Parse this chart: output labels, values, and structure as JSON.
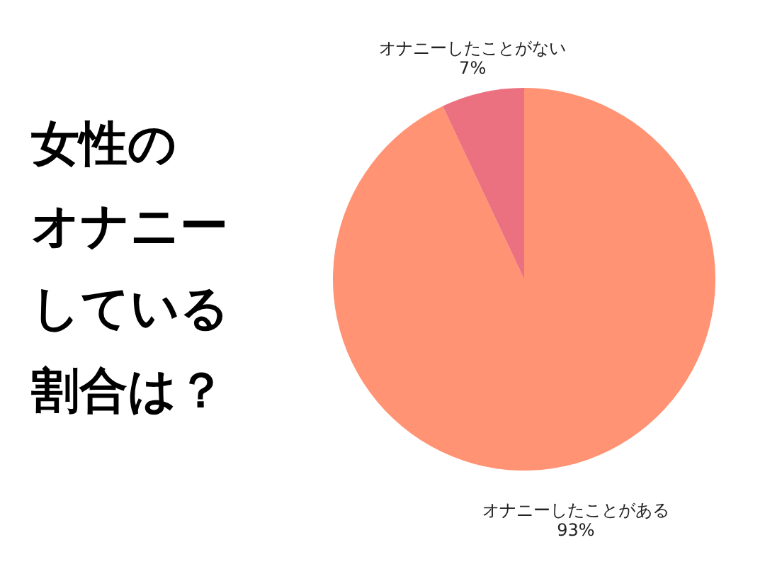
{
  "chart_data": {
    "type": "pie",
    "title": "女性のオナニーしている割合は？",
    "categories": [
      "オナニーしたことがある",
      "オナニーしたことがない"
    ],
    "values": [
      93,
      7
    ],
    "colors": [
      "#ff9373",
      "#eb7080"
    ],
    "value_labels": [
      "93%",
      "7%"
    ]
  }
}
